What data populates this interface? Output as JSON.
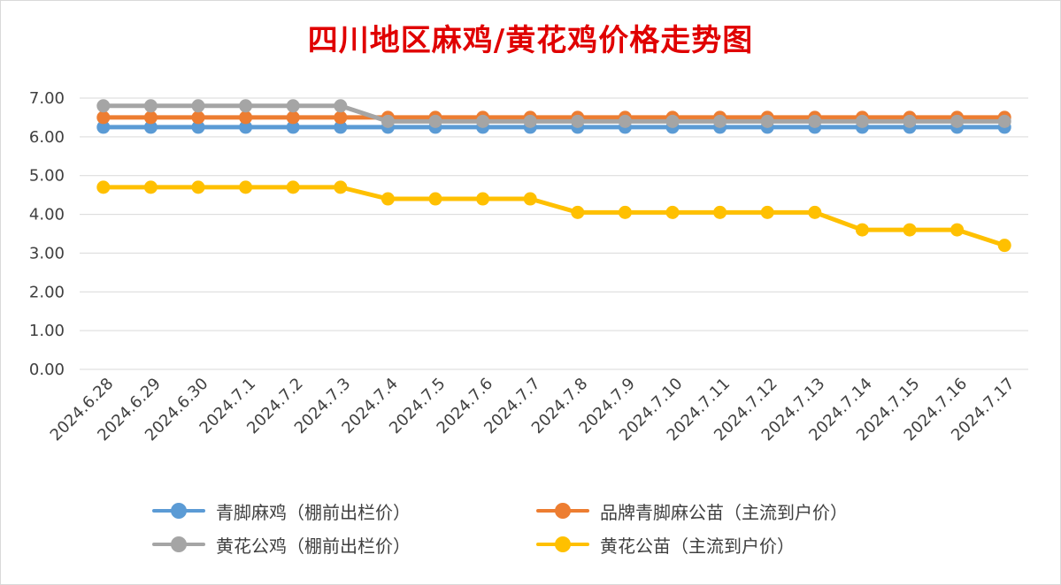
{
  "chart_data": {
    "type": "line",
    "title": "四川地区麻鸡/黄花鸡价格走势图",
    "xlabel": "",
    "ylabel": "",
    "ylim": [
      0,
      7
    ],
    "ytick_step": 1,
    "ytick_labels": [
      "0.00",
      "1.00",
      "2.00",
      "3.00",
      "4.00",
      "5.00",
      "6.00",
      "7.00"
    ],
    "grid": true,
    "legend_position": "bottom",
    "categories": [
      "2024.6.28",
      "2024.6.29",
      "2024.6.30",
      "2024.7.1",
      "2024.7.2",
      "2024.7.3",
      "2024.7.4",
      "2024.7.5",
      "2024.7.6",
      "2024.7.7",
      "2024.7.8",
      "2024.7.9",
      "2024.7.10",
      "2024.7.11",
      "2024.7.12",
      "2024.7.13",
      "2024.7.14",
      "2024.7.15",
      "2024.7.16",
      "2024.7.17"
    ],
    "series": [
      {
        "name": "青脚麻鸡（棚前出栏价）",
        "color": "#5b9bd5",
        "values": [
          6.25,
          6.25,
          6.25,
          6.25,
          6.25,
          6.25,
          6.25,
          6.25,
          6.25,
          6.25,
          6.25,
          6.25,
          6.25,
          6.25,
          6.25,
          6.25,
          6.25,
          6.25,
          6.25,
          6.25
        ]
      },
      {
        "name": "品牌青脚麻公苗（主流到户价）",
        "color": "#ed7d31",
        "values": [
          6.5,
          6.5,
          6.5,
          6.5,
          6.5,
          6.5,
          6.5,
          6.5,
          6.5,
          6.5,
          6.5,
          6.5,
          6.5,
          6.5,
          6.5,
          6.5,
          6.5,
          6.5,
          6.5,
          6.5
        ]
      },
      {
        "name": "黄花公鸡（棚前出栏价）",
        "color": "#a5a5a5",
        "values": [
          6.8,
          6.8,
          6.8,
          6.8,
          6.8,
          6.8,
          6.4,
          6.4,
          6.4,
          6.4,
          6.4,
          6.4,
          6.4,
          6.4,
          6.4,
          6.4,
          6.4,
          6.4,
          6.4,
          6.4
        ]
      },
      {
        "name": "黄花公苗（主流到户价）",
        "color": "#ffc000",
        "values": [
          4.7,
          4.7,
          4.7,
          4.7,
          4.7,
          4.7,
          4.4,
          4.4,
          4.4,
          4.4,
          4.05,
          4.05,
          4.05,
          4.05,
          4.05,
          4.05,
          3.6,
          3.6,
          3.6,
          3.2
        ]
      }
    ]
  }
}
